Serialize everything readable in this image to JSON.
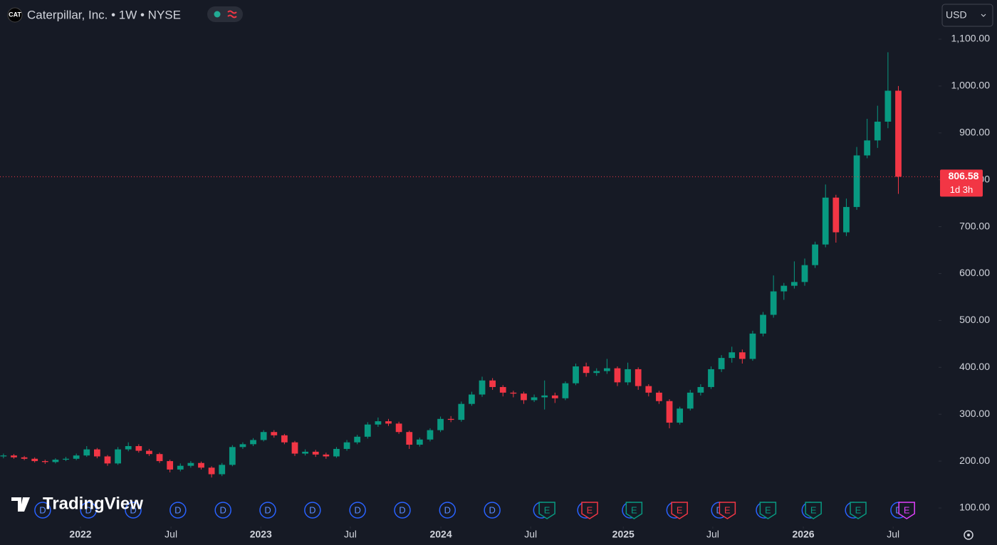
{
  "header": {
    "logo": "CAT",
    "title": "Caterpillar, Inc. • 1W • NYSE",
    "currency": "USD",
    "brand": "TradingView"
  },
  "chart_data": {
    "type": "candlestick",
    "x": [
      1,
      4,
      7,
      10,
      13,
      16,
      19,
      22,
      25,
      28,
      31,
      34,
      37,
      40,
      43,
      46,
      49,
      52,
      55,
      58,
      61,
      64,
      67,
      70,
      73,
      76,
      79,
      82,
      85,
      88,
      91,
      94,
      97,
      100,
      103,
      106,
      109,
      112,
      115,
      118,
      121,
      124,
      127,
      130,
      133,
      136,
      139,
      142,
      145,
      148,
      151,
      154,
      157,
      160,
      163,
      166,
      169,
      172,
      175,
      178,
      181,
      184,
      187,
      190,
      193,
      196,
      199,
      202,
      205,
      208,
      211,
      214,
      217,
      220,
      223,
      226,
      229,
      232,
      235,
      238,
      241,
      244,
      247,
      250,
      253,
      256,
      259
    ],
    "open": [
      210,
      212,
      208,
      205,
      200,
      198,
      203,
      205,
      212,
      225,
      210,
      195,
      225,
      232,
      222,
      215,
      200,
      182,
      190,
      196,
      186,
      172,
      192,
      230,
      236,
      245,
      262,
      255,
      240,
      216,
      220,
      214,
      210,
      226,
      240,
      252,
      278,
      285,
      280,
      262,
      235,
      246,
      266,
      290,
      288,
      322,
      342,
      372,
      358,
      346,
      344,
      330,
      336,
      340,
      334,
      366,
      402,
      388,
      392,
      398,
      368,
      396,
      360,
      346,
      328,
      282,
      312,
      346,
      358,
      396,
      420,
      432,
      418,
      472,
      512,
      562,
      574,
      582,
      618,
      662,
      762,
      688,
      742,
      852,
      884,
      924,
      990
    ],
    "high": [
      216,
      215,
      211,
      208,
      203,
      206,
      209,
      216,
      232,
      228,
      213,
      230,
      240,
      236,
      226,
      218,
      203,
      195,
      200,
      199,
      189,
      196,
      234,
      240,
      249,
      266,
      266,
      258,
      243,
      225,
      224,
      218,
      230,
      245,
      256,
      283,
      293,
      290,
      284,
      265,
      250,
      270,
      295,
      296,
      327,
      348,
      380,
      377,
      362,
      350,
      348,
      342,
      372,
      346,
      370,
      408,
      410,
      398,
      418,
      402,
      410,
      400,
      364,
      350,
      332,
      316,
      352,
      364,
      402,
      426,
      444,
      438,
      478,
      518,
      596,
      580,
      626,
      632,
      668,
      790,
      768,
      760,
      870,
      930,
      958,
      1072,
      1000
    ],
    "low": [
      206,
      205,
      202,
      197,
      194,
      195,
      200,
      202,
      209,
      206,
      190,
      192,
      221,
      218,
      211,
      196,
      176,
      178,
      186,
      182,
      165,
      168,
      189,
      226,
      232,
      242,
      250,
      236,
      211,
      212,
      209,
      205,
      207,
      222,
      236,
      248,
      273,
      275,
      258,
      226,
      231,
      242,
      262,
      283,
      284,
      318,
      337,
      352,
      338,
      336,
      322,
      326,
      310,
      324,
      330,
      362,
      380,
      382,
      386,
      360,
      362,
      352,
      338,
      322,
      270,
      278,
      308,
      340,
      354,
      390,
      410,
      408,
      414,
      466,
      506,
      544,
      568,
      574,
      612,
      656,
      666,
      680,
      736,
      846,
      868,
      910,
      770
    ],
    "close": [
      212,
      208,
      205,
      200,
      198,
      203,
      205,
      212,
      225,
      210,
      195,
      225,
      232,
      222,
      215,
      200,
      182,
      190,
      196,
      186,
      172,
      192,
      230,
      236,
      245,
      262,
      255,
      240,
      216,
      220,
      214,
      210,
      226,
      240,
      252,
      278,
      285,
      280,
      262,
      235,
      246,
      266,
      290,
      288,
      322,
      342,
      372,
      358,
      346,
      344,
      330,
      336,
      340,
      334,
      366,
      402,
      388,
      392,
      398,
      368,
      396,
      360,
      346,
      328,
      282,
      312,
      346,
      358,
      396,
      420,
      432,
      418,
      472,
      512,
      562,
      574,
      582,
      618,
      662,
      762,
      688,
      742,
      852,
      884,
      924,
      990,
      806.58
    ],
    "up_color": "#089981",
    "down_color": "#f23645",
    "last_price": {
      "value": 806.58,
      "label": "806.58",
      "countdown": "1d 3h"
    },
    "xlim": [
      0,
      270.6
    ],
    "xticks": [
      {
        "value": 23.2,
        "label": "2022"
      },
      {
        "value": 49.3,
        "label": "Jul"
      },
      {
        "value": 75.2,
        "label": "2023"
      },
      {
        "value": 101,
        "label": "Jul"
      },
      {
        "value": 127.1,
        "label": "2024"
      },
      {
        "value": 153,
        "label": "Jul"
      },
      {
        "value": 179.7,
        "label": "2025"
      },
      {
        "value": 205.5,
        "label": "Jul"
      },
      {
        "value": 231.6,
        "label": "2026"
      },
      {
        "value": 257.5,
        "label": "Jul"
      }
    ],
    "ylim": [
      60.5,
      1183.5
    ],
    "yticks": [
      {
        "value": 100,
        "label": "100.00"
      },
      {
        "value": 200,
        "label": "200.00"
      },
      {
        "value": 300,
        "label": "300.00"
      },
      {
        "value": 400,
        "label": "400.00"
      },
      {
        "value": 500,
        "label": "500.00"
      },
      {
        "value": 600,
        "label": "600.00"
      },
      {
        "value": 700,
        "label": "700.00"
      },
      {
        "value": 800,
        "label": "800.00"
      },
      {
        "value": 900,
        "label": "900.00"
      },
      {
        "value": 1000,
        "label": "1,000.00"
      },
      {
        "value": 1100,
        "label": "1,100.00"
      }
    ],
    "events": [
      {
        "x": 12.3,
        "label": "D",
        "color": "#2962ff"
      },
      {
        "x": 25.5,
        "label": "D",
        "color": "#2962ff"
      },
      {
        "x": 38.4,
        "label": "D",
        "color": "#2962ff"
      },
      {
        "x": 51.3,
        "label": "D",
        "color": "#2962ff"
      },
      {
        "x": 64.3,
        "label": "D",
        "color": "#2962ff"
      },
      {
        "x": 77.2,
        "label": "D",
        "color": "#2962ff"
      },
      {
        "x": 90.1,
        "label": "D",
        "color": "#2962ff"
      },
      {
        "x": 103.1,
        "label": "D",
        "color": "#2962ff"
      },
      {
        "x": 116,
        "label": "D",
        "color": "#2962ff"
      },
      {
        "x": 129,
        "label": "D",
        "color": "#2962ff"
      },
      {
        "x": 141.9,
        "label": "D",
        "color": "#2962ff"
      },
      {
        "x": 156.1,
        "label": "D",
        "color": "#2962ff"
      },
      {
        "x": 157.7,
        "label": "E",
        "color": "#089981"
      },
      {
        "x": 168.8,
        "label": "D",
        "color": "#2962ff"
      },
      {
        "x": 170,
        "label": "E",
        "color": "#f23645"
      },
      {
        "x": 181.7,
        "label": "D",
        "color": "#2962ff"
      },
      {
        "x": 182.8,
        "label": "E",
        "color": "#089981"
      },
      {
        "x": 194.5,
        "label": "D",
        "color": "#2962ff"
      },
      {
        "x": 195.9,
        "label": "E",
        "color": "#f23645"
      },
      {
        "x": 207.4,
        "label": "D",
        "color": "#2962ff"
      },
      {
        "x": 209.7,
        "label": "E",
        "color": "#f23645"
      },
      {
        "x": 220.3,
        "label": "D",
        "color": "#2962ff"
      },
      {
        "x": 221.4,
        "label": "E",
        "color": "#089981"
      },
      {
        "x": 233.5,
        "label": "D",
        "color": "#2962ff"
      },
      {
        "x": 234.5,
        "label": "E",
        "color": "#089981"
      },
      {
        "x": 246,
        "label": "D",
        "color": "#2962ff"
      },
      {
        "x": 247.4,
        "label": "E",
        "color": "#089981"
      },
      {
        "x": 259.1,
        "label": "D",
        "color": "#2962ff"
      },
      {
        "x": 261.4,
        "label": "E",
        "color": "#e040fb"
      }
    ]
  }
}
